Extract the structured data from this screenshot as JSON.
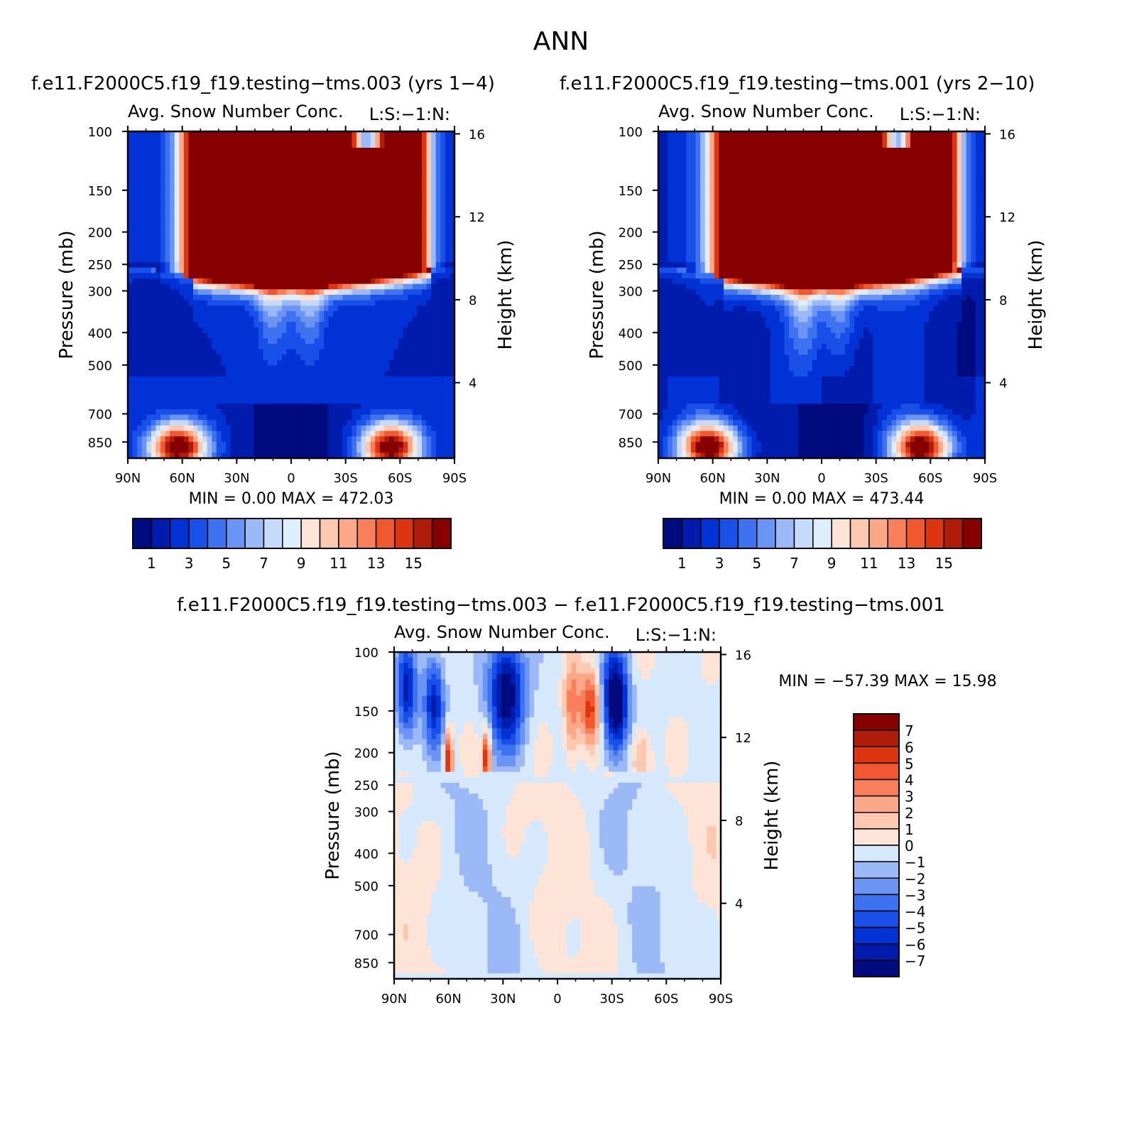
{
  "page_title": "ANN",
  "panels": [
    {
      "id": "p1",
      "title": "f.e11.F2000C5.f19_f19.testing−tms.003 (yrs 1−4)",
      "subtitle_left": "Avg. Snow Number Conc.",
      "subtitle_right": "L:S:−1:N:",
      "minmax": "MIN =     0.00   MAX  =  472.03",
      "ylabel": "Pressure (mb)",
      "y2label": "Height (km)"
    },
    {
      "id": "p2",
      "title": "f.e11.F2000C5.f19_f19.testing−tms.001 (yrs 2−10)",
      "subtitle_left": "Avg. Snow Number Conc.",
      "subtitle_right": "L:S:−1:N:",
      "minmax": "MIN =     0.00   MAX  =  473.44",
      "ylabel": "Pressure (mb)",
      "y2label": "Height (km)"
    },
    {
      "id": "p3",
      "title": "f.e11.F2000C5.f19_f19.testing−tms.003 − f.e11.F2000C5.f19_f19.testing−tms.001",
      "subtitle_left": "Avg. Snow Number Conc.",
      "subtitle_right": "L:S:−1:N:",
      "minmax": "MIN = −57.39   MAX =   15.98",
      "ylabel": "Pressure (mb)",
      "y2label": "Height (km)"
    }
  ],
  "chart_data": [
    {
      "type": "heatmap",
      "panel": "p1",
      "x_ticks": [
        "90N",
        "60N",
        "30N",
        "0",
        "30S",
        "60S",
        "90S"
      ],
      "y_ticks_pressure": [
        100,
        150,
        200,
        250,
        300,
        400,
        500,
        700,
        850
      ],
      "y_ticks_height": [
        16,
        12,
        8,
        4
      ],
      "y_scale": "log (pressure)",
      "colorbar": {
        "orientation": "horizontal",
        "labels": [
          "1",
          "3",
          "5",
          "7",
          "9",
          "11",
          "13",
          "15"
        ]
      },
      "stats": {
        "min": 0.0,
        "max": 472.03
      }
    },
    {
      "type": "heatmap",
      "panel": "p2",
      "x_ticks": [
        "90N",
        "60N",
        "30N",
        "0",
        "30S",
        "60S",
        "90S"
      ],
      "y_ticks_pressure": [
        100,
        150,
        200,
        250,
        300,
        400,
        500,
        700,
        850
      ],
      "y_ticks_height": [
        16,
        12,
        8,
        4
      ],
      "y_scale": "log (pressure)",
      "colorbar": {
        "orientation": "horizontal",
        "labels": [
          "1",
          "3",
          "5",
          "7",
          "9",
          "11",
          "13",
          "15"
        ]
      },
      "stats": {
        "min": 0.0,
        "max": 473.44
      }
    },
    {
      "type": "heatmap",
      "panel": "p3",
      "x_ticks": [
        "90N",
        "60N",
        "30N",
        "0",
        "30S",
        "60S",
        "90S"
      ],
      "y_ticks_pressure": [
        100,
        150,
        200,
        250,
        300,
        400,
        500,
        700,
        850
      ],
      "y_ticks_height": [
        16,
        12,
        8,
        4
      ],
      "y_scale": "log (pressure)",
      "colorbar": {
        "orientation": "vertical",
        "labels": [
          "7",
          "6",
          "5",
          "4",
          "3",
          "2",
          "1",
          "0",
          "−1",
          "−2",
          "−3",
          "−4",
          "−5",
          "−6",
          "−7"
        ]
      },
      "stats": {
        "min": -57.39,
        "max": 15.98
      }
    }
  ],
  "colors": {
    "abs_scale": [
      "#000b80",
      "#001cad",
      "#0032d6",
      "#1a50ea",
      "#3f72f0",
      "#6b95f5",
      "#9cb9f7",
      "#c6dafb",
      "#ddeefe",
      "#fde4d6",
      "#fcc8b0",
      "#fba788",
      "#f87f5a",
      "#f25830",
      "#de3511",
      "#b01c0a",
      "#870000"
    ],
    "diff_scale": [
      "#000b80",
      "#001cad",
      "#0032d6",
      "#1a50ea",
      "#3f72f0",
      "#6b95f5",
      "#9cb9f7",
      "#d6e9fc",
      "#fde4d6",
      "#fcc8b0",
      "#fba788",
      "#f87f5a",
      "#f25830",
      "#de3511",
      "#b01c0a",
      "#870000"
    ]
  }
}
